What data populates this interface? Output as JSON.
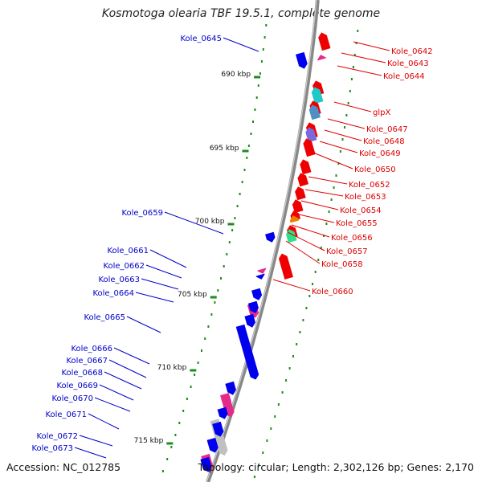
{
  "title": "Kosmotoga olearia TBF 19.5.1, complete genome",
  "footer": {
    "accession": "Accession: NC_012785",
    "summary": "Topology: circular; Length: 2,302,126 bp; Genes: 2,170"
  },
  "colors": {
    "forward_gene": "#0000ee",
    "reverse_gene": "#ee0000",
    "forward_label": "#0000cc",
    "reverse_label": "#dd0000",
    "backbone": "#888888",
    "tick": "#1e8c1e",
    "pink_gene": "#e8288a",
    "grey_gene": "#c0c0c0",
    "cyan_gene": "#20c8c8",
    "steelblue_gene": "#4f8fc6",
    "purple_gene": "#7b68d9",
    "orange_gene": "#f07d00",
    "spring_gene": "#2ee08c"
  },
  "ruler": {
    "ticks": [
      "690 kbp",
      "695 kbp",
      "700 kbp",
      "705 kbp",
      "710 kbp",
      "715 kbp"
    ]
  },
  "genes_forward": [
    {
      "label": "Kole_0645"
    },
    {
      "label": "Kole_0659"
    },
    {
      "label": "Kole_0661"
    },
    {
      "label": "Kole_0662"
    },
    {
      "label": "Kole_0663"
    },
    {
      "label": "Kole_0664"
    },
    {
      "label": "Kole_0665"
    },
    {
      "label": "Kole_0666"
    },
    {
      "label": "Kole_0667"
    },
    {
      "label": "Kole_0668"
    },
    {
      "label": "Kole_0669"
    },
    {
      "label": "Kole_0670"
    },
    {
      "label": "Kole_0671"
    },
    {
      "label": "Kole_0672"
    },
    {
      "label": "Kole_0673"
    }
  ],
  "genes_reverse": [
    {
      "label": "Kole_0642"
    },
    {
      "label": "Kole_0643"
    },
    {
      "label": "Kole_0644"
    },
    {
      "label": "glpX"
    },
    {
      "label": "Kole_0647"
    },
    {
      "label": "Kole_0648"
    },
    {
      "label": "Kole_0649"
    },
    {
      "label": "Kole_0650"
    },
    {
      "label": "Kole_0652"
    },
    {
      "label": "Kole_0653"
    },
    {
      "label": "Kole_0654"
    },
    {
      "label": "Kole_0655"
    },
    {
      "label": "Kole_0656"
    },
    {
      "label": "Kole_0657"
    },
    {
      "label": "Kole_0658"
    },
    {
      "label": "Kole_0660"
    }
  ]
}
